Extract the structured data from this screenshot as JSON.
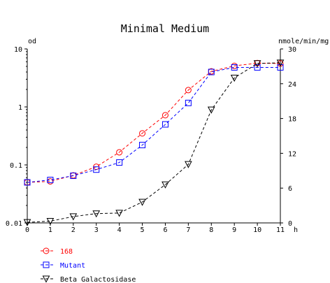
{
  "chart_data": {
    "type": "line",
    "title": "Minimal Medium",
    "left_axis_unit": "od",
    "right_axis_unit": "nmole/min/mg",
    "x_unit": "h",
    "x": [
      0,
      1,
      2,
      3,
      4,
      5,
      6,
      7,
      8,
      9,
      10,
      11
    ],
    "x_ticks": [
      "0",
      "1",
      "2",
      "3",
      "4",
      "5",
      "6",
      "7",
      "8",
      "9",
      "10",
      "11"
    ],
    "left_scale": "log",
    "left_ylim": [
      0.01,
      10
    ],
    "left_ticks": [
      "0.01",
      "0.1",
      "1",
      "10"
    ],
    "right_ylim": [
      0,
      30
    ],
    "right_ticks": [
      "0",
      "6",
      "12",
      "18",
      "24",
      "30"
    ],
    "series": [
      {
        "name": "168",
        "axis": "left",
        "color": "#ff0000",
        "marker": "circle",
        "values": [
          0.05,
          0.052,
          0.066,
          0.093,
          0.165,
          0.35,
          0.72,
          1.95,
          4.1,
          5.1,
          5.7,
          5.6
        ]
      },
      {
        "name": "Mutant",
        "axis": "left",
        "color": "#0000ff",
        "marker": "square",
        "values": [
          0.05,
          0.055,
          0.065,
          0.083,
          0.11,
          0.22,
          0.5,
          1.17,
          4.0,
          4.8,
          4.8,
          4.8
        ]
      },
      {
        "name": "Beta Galactosidase",
        "axis": "right",
        "color": "#000000",
        "marker": "triangle-down",
        "values": [
          0.1,
          0.3,
          1.1,
          1.6,
          1.7,
          3.6,
          6.6,
          10.1,
          19.5,
          25,
          27.5,
          27.6
        ]
      }
    ],
    "legend_position": "bottom-left",
    "grid": false
  }
}
